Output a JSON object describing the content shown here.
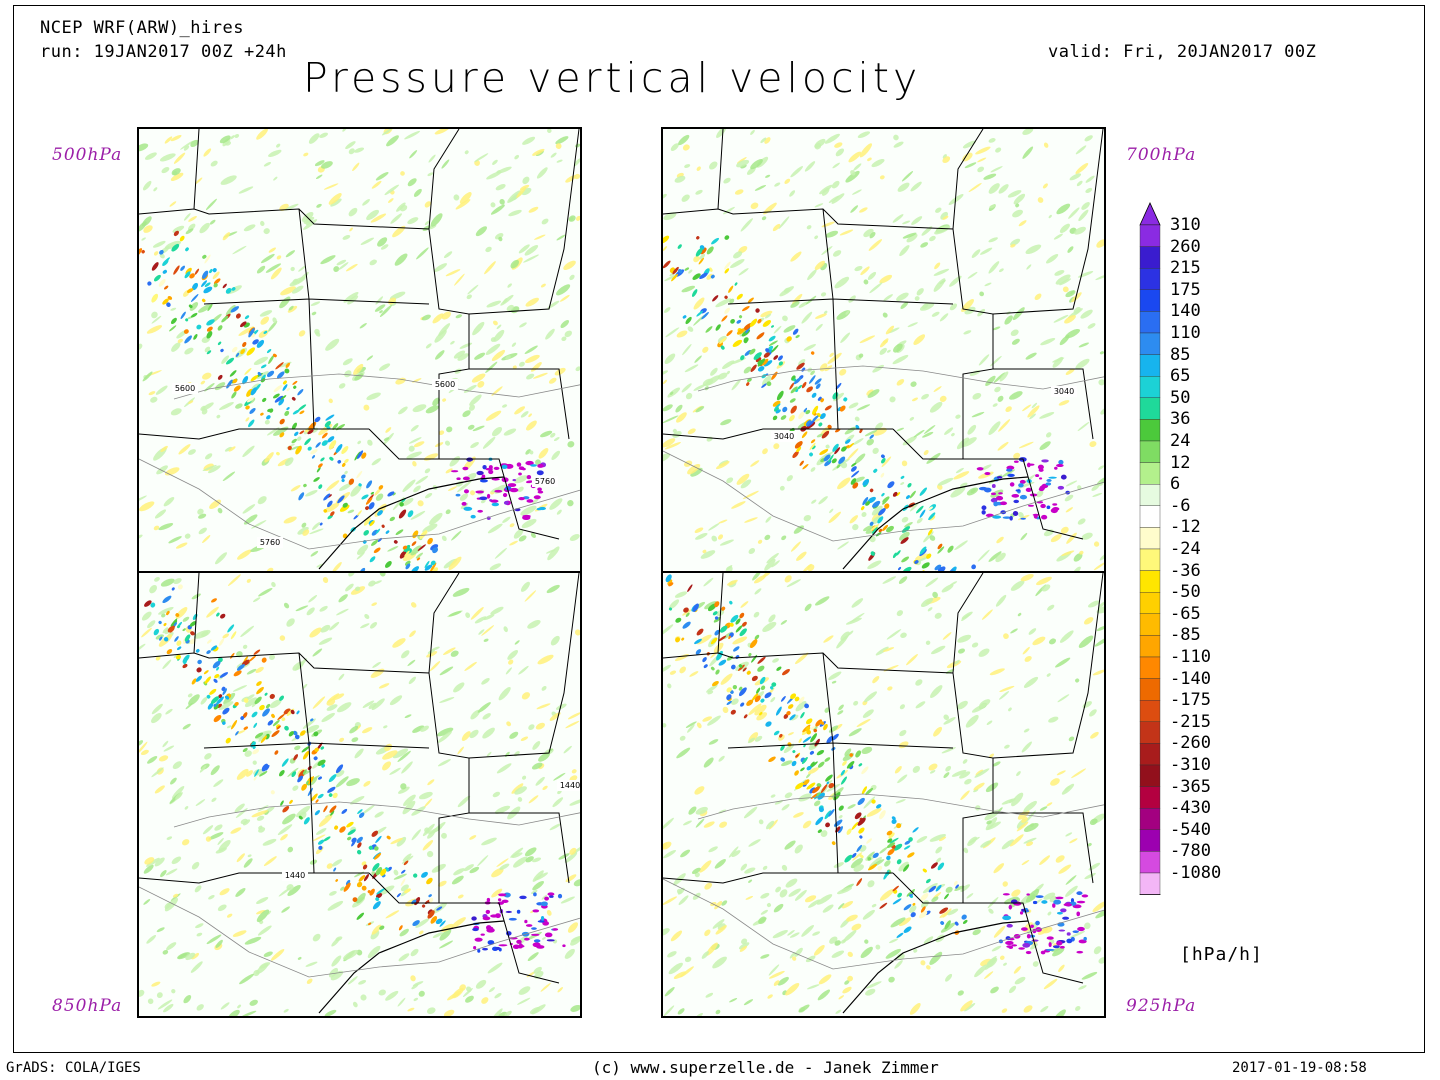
{
  "header": {
    "model": "NCEP WRF(ARW)_hires",
    "run": "run: 19JAN2017 00Z +24h",
    "valid": "valid: Fri, 20JAN2017 00Z",
    "title": "Pressure vertical velocity"
  },
  "panels": [
    {
      "level": "500hPa",
      "contours": [
        "5600",
        "5600",
        "5760",
        "5760"
      ]
    },
    {
      "level": "700hPa",
      "contours": [
        "3040",
        "3040"
      ]
    },
    {
      "level": "850hPa",
      "contours": [
        "1440",
        "1440"
      ]
    },
    {
      "level": "925hPa",
      "contours": []
    }
  ],
  "colorbar": {
    "unit": "[hPa/h]",
    "labels": [
      "310",
      "260",
      "215",
      "175",
      "140",
      "110",
      "85",
      "65",
      "50",
      "36",
      "24",
      "12",
      "6",
      "-6",
      "-12",
      "-24",
      "-36",
      "-50",
      "-65",
      "-85",
      "-110",
      "-140",
      "-175",
      "-215",
      "-260",
      "-310",
      "-365",
      "-430",
      "-540",
      "-780",
      "-1080"
    ],
    "colors": [
      "#8a2be2",
      "#3a1ccf",
      "#2c32e3",
      "#1a48f0",
      "#2a6ef2",
      "#2d8cf0",
      "#17b4ee",
      "#1cd2d6",
      "#1fd99a",
      "#4cc93b",
      "#7fdc63",
      "#b3f08c",
      "#e6fbe0",
      "#ffffff",
      "#fffccc",
      "#fff87a",
      "#ffe600",
      "#ffd000",
      "#ffbb00",
      "#ffa600",
      "#ff8800",
      "#ee6a00",
      "#dd4d10",
      "#c33418",
      "#a81c1c",
      "#92101c",
      "#b30040",
      "#a30080",
      "#9c00b0",
      "#d54ae0",
      "#f3b6f6",
      "#ffffff"
    ],
    "top_arrow_color": "#8a2be2"
  },
  "footer": {
    "left": "GrADS: COLA/IGES",
    "center": "(c) www.superzelle.de - Janek Zimmer",
    "right": "2017-01-19-08:58"
  }
}
